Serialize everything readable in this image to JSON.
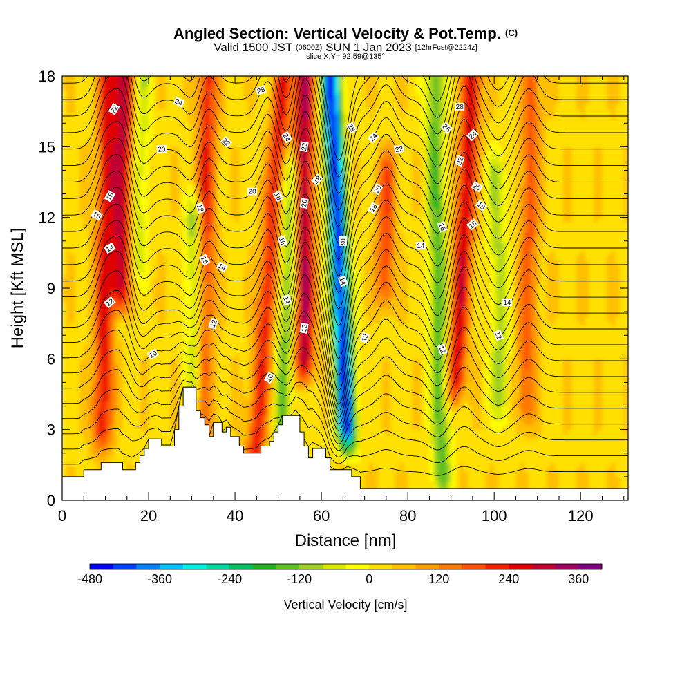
{
  "header": {
    "title_main": "Angled Section: Vertical Velocity & Pot.Temp.",
    "title_suffix": "(C)",
    "sub_a": "Valid 1500 JST",
    "sub_b": "(0600Z)",
    "sub_c": "SUN 1 Jan 2023",
    "sub_d": "[12hrFcst@2224z]",
    "slice": "slice X,Y= 92,59@135°"
  },
  "chart_data": {
    "type": "heatmap",
    "xlabel": "Distance [nm]",
    "ylabel": "Height [Kft MSL]",
    "xlim": [
      0,
      131
    ],
    "ylim": [
      0,
      18
    ],
    "x_ticks": [
      0,
      20,
      40,
      60,
      80,
      100,
      120
    ],
    "x_tick_labels": [
      "0",
      "20",
      "40",
      "60",
      "80",
      "100",
      "120"
    ],
    "y_ticks": [
      0,
      3,
      6,
      9,
      12,
      15,
      18
    ],
    "y_tick_labels": [
      "0",
      "3",
      "6",
      "9",
      "12",
      "15",
      "18"
    ],
    "colorbar": {
      "title": "Vertical Velocity [cm/s]",
      "min": -480,
      "max": 400,
      "step": 40,
      "tick_values": [
        -480,
        -360,
        -240,
        -120,
        0,
        120,
        240,
        360
      ],
      "tick_labels": [
        "-480",
        "-360",
        "-240",
        "-120",
        "0",
        "120",
        "240",
        "360"
      ],
      "colors": [
        "#0000f0",
        "#0040ff",
        "#0080ff",
        "#00c0ff",
        "#00f0e0",
        "#00d8a0",
        "#00c060",
        "#20b020",
        "#60c020",
        "#a0d020",
        "#d8e800",
        "#ffff00",
        "#ffe000",
        "#ffc000",
        "#ff9c00",
        "#ff7800",
        "#ff5000",
        "#f02000",
        "#e00000",
        "#c00030",
        "#a00060",
        "#800080"
      ]
    },
    "vertical_velocity_features": [
      {
        "x": 10,
        "z_top": 18,
        "z_bottom": 3,
        "peak_cms": 220,
        "slope_nm_per_kft": 0.1
      },
      {
        "x": 14,
        "z_top": 18,
        "z_bottom": 9,
        "peak_cms": 260,
        "slope_nm_per_kft": 0.1
      },
      {
        "x": 18,
        "z_top": 18,
        "z_bottom": 10,
        "peak_cms": -100,
        "slope_nm_per_kft": 0.2
      },
      {
        "x": 33,
        "z_top": 18,
        "z_bottom": 2,
        "peak_cms": 200,
        "slope_nm_per_kft": 0.1
      },
      {
        "x": 31,
        "z_top": 12,
        "z_bottom": 3,
        "peak_cms": -160,
        "slope_nm_per_kft": -0.1
      },
      {
        "x": 48,
        "z_top": 18,
        "z_bottom": 2,
        "peak_cms": 200,
        "slope_nm_per_kft": 0.4
      },
      {
        "x": 52,
        "z_top": 14,
        "z_bottom": 3,
        "peak_cms": -160,
        "slope_nm_per_kft": 0.2
      },
      {
        "x": 56,
        "z_top": 18,
        "z_bottom": 6,
        "peak_cms": 300,
        "slope_nm_per_kft": 0.0
      },
      {
        "x": 64,
        "z_top": 18,
        "z_bottom": 3,
        "peak_cms": -480,
        "slope_nm_per_kft": -0.25
      },
      {
        "x": 75,
        "z_top": 14,
        "z_bottom": 9,
        "peak_cms": 160,
        "slope_nm_per_kft": 0.1
      },
      {
        "x": 87,
        "z_top": 18,
        "z_bottom": 1,
        "peak_cms": -180,
        "slope_nm_per_kft": -0.1
      },
      {
        "x": 93,
        "z_top": 18,
        "z_bottom": 5,
        "peak_cms": 240,
        "slope_nm_per_kft": 0.3
      },
      {
        "x": 101,
        "z_top": 14,
        "z_bottom": 4,
        "peak_cms": -120,
        "slope_nm_per_kft": -0.1
      },
      {
        "x": 108,
        "z_top": 18,
        "z_bottom": 4,
        "peak_cms": 140,
        "slope_nm_per_kft": 0.1
      }
    ],
    "terrain_profile": [
      [
        0,
        1.0
      ],
      [
        4,
        1.0
      ],
      [
        5,
        1.3
      ],
      [
        8,
        1.3
      ],
      [
        9,
        1.6
      ],
      [
        13,
        1.6
      ],
      [
        14,
        1.3
      ],
      [
        16,
        1.3
      ],
      [
        17,
        1.6
      ],
      [
        18,
        1.9
      ],
      [
        19,
        2.2
      ],
      [
        20,
        2.6
      ],
      [
        22,
        2.6
      ],
      [
        23,
        2.3
      ],
      [
        25,
        2.3
      ],
      [
        26,
        3.0
      ],
      [
        27,
        4.0
      ],
      [
        28,
        4.8
      ],
      [
        30,
        4.8
      ],
      [
        31,
        3.8
      ],
      [
        32,
        3.5
      ],
      [
        33,
        3.2
      ],
      [
        34,
        2.7
      ],
      [
        35,
        3.3
      ],
      [
        36,
        3.3
      ],
      [
        37,
        2.9
      ],
      [
        38,
        3.1
      ],
      [
        39,
        2.7
      ],
      [
        41,
        2.3
      ],
      [
        42,
        2.0
      ],
      [
        45,
        2.0
      ],
      [
        46,
        2.3
      ],
      [
        48,
        2.5
      ],
      [
        49,
        2.9
      ],
      [
        50,
        3.2
      ],
      [
        51,
        3.6
      ],
      [
        54,
        3.6
      ],
      [
        55,
        2.9
      ],
      [
        56,
        2.3
      ],
      [
        57,
        1.8
      ],
      [
        58,
        2.2
      ],
      [
        60,
        2.2
      ],
      [
        61,
        1.8
      ],
      [
        62,
        1.3
      ],
      [
        66,
        1.3
      ],
      [
        67,
        1.0
      ],
      [
        69,
        0.5
      ],
      [
        131,
        0.5
      ]
    ],
    "theta_contours": {
      "levels": [
        10,
        12,
        14,
        16,
        18,
        20,
        22,
        24,
        26,
        28
      ],
      "labels": [
        {
          "x": 12,
          "z": 16.6,
          "text": "22",
          "angle": -60
        },
        {
          "x": 27,
          "z": 16.9,
          "text": "24",
          "angle": 25
        },
        {
          "x": 46,
          "z": 17.4,
          "text": "28",
          "angle": -20
        },
        {
          "x": 23,
          "z": 14.9,
          "text": "20",
          "angle": 0
        },
        {
          "x": 38,
          "z": 15.2,
          "text": "22",
          "angle": 45
        },
        {
          "x": 52,
          "z": 15.4,
          "text": "24",
          "angle": 60
        },
        {
          "x": 56,
          "z": 15.0,
          "text": "22",
          "angle": -80
        },
        {
          "x": 67,
          "z": 15.8,
          "text": "28",
          "angle": 60
        },
        {
          "x": 72,
          "z": 15.4,
          "text": "24",
          "angle": -45
        },
        {
          "x": 78,
          "z": 14.9,
          "text": "22",
          "angle": -10
        },
        {
          "x": 92,
          "z": 16.7,
          "text": "28",
          "angle": 0
        },
        {
          "x": 89,
          "z": 15.8,
          "text": "26",
          "angle": 45
        },
        {
          "x": 95,
          "z": 15.5,
          "text": "24",
          "angle": -45
        },
        {
          "x": 92,
          "z": 14.4,
          "text": "22",
          "angle": -70
        },
        {
          "x": 96,
          "z": 13.3,
          "text": "20",
          "angle": 30
        },
        {
          "x": 97,
          "z": 12.5,
          "text": "18",
          "angle": 40
        },
        {
          "x": 95,
          "z": 11.7,
          "text": "16",
          "angle": -40
        },
        {
          "x": 88,
          "z": 11.6,
          "text": "16",
          "angle": 70
        },
        {
          "x": 83,
          "z": 10.8,
          "text": "14",
          "angle": 0
        },
        {
          "x": 11,
          "z": 12.9,
          "text": "18",
          "angle": -60
        },
        {
          "x": 8,
          "z": 12.1,
          "text": "16",
          "angle": 30
        },
        {
          "x": 11,
          "z": 10.7,
          "text": "14",
          "angle": -30
        },
        {
          "x": 11,
          "z": 8.4,
          "text": "12",
          "angle": -40
        },
        {
          "x": 21,
          "z": 6.2,
          "text": "10",
          "angle": -30
        },
        {
          "x": 32,
          "z": 12.4,
          "text": "18",
          "angle": 70
        },
        {
          "x": 33,
          "z": 10.2,
          "text": "16",
          "angle": 60
        },
        {
          "x": 37,
          "z": 9.9,
          "text": "14",
          "angle": 30
        },
        {
          "x": 35,
          "z": 7.5,
          "text": "12",
          "angle": -70
        },
        {
          "x": 44,
          "z": 13.1,
          "text": "20",
          "angle": 0
        },
        {
          "x": 50,
          "z": 12.9,
          "text": "18",
          "angle": 60
        },
        {
          "x": 51,
          "z": 11.0,
          "text": "16",
          "angle": 70
        },
        {
          "x": 52,
          "z": 8.5,
          "text": "14",
          "angle": 70
        },
        {
          "x": 48,
          "z": 5.2,
          "text": "10",
          "angle": -60
        },
        {
          "x": 56,
          "z": 12.6,
          "text": "20",
          "angle": -80
        },
        {
          "x": 59,
          "z": 13.6,
          "text": "18",
          "angle": -50
        },
        {
          "x": 56,
          "z": 7.3,
          "text": "12",
          "angle": -80
        },
        {
          "x": 65,
          "z": 11.0,
          "text": "16",
          "angle": 90
        },
        {
          "x": 65,
          "z": 9.3,
          "text": "14",
          "angle": 70
        },
        {
          "x": 72,
          "z": 12.4,
          "text": "18",
          "angle": -60
        },
        {
          "x": 73,
          "z": 13.2,
          "text": "20",
          "angle": -60
        },
        {
          "x": 70,
          "z": 6.9,
          "text": "12",
          "angle": -70
        },
        {
          "x": 88,
          "z": 6.4,
          "text": "12",
          "angle": 70
        },
        {
          "x": 103,
          "z": 8.4,
          "text": "14",
          "angle": 0
        },
        {
          "x": 101,
          "z": 7.0,
          "text": "12",
          "angle": 70
        }
      ]
    }
  }
}
